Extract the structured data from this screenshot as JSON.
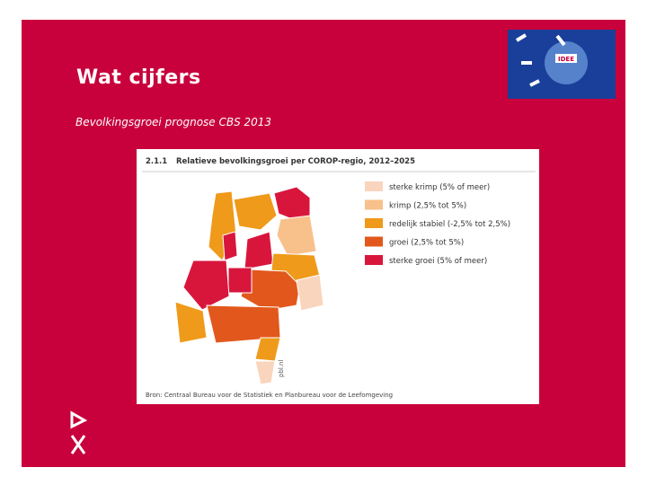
{
  "slide": {
    "title": "Wat cijfers",
    "subtitle": "Bevolkingsgroei prognose CBS 2013"
  },
  "logo": {
    "text": "IDEE"
  },
  "figure": {
    "number": "2.1.1",
    "title": "Relatieve bevolkingsgroei per COROP-regio, 2012–2025",
    "legend": [
      {
        "label": "sterke krimp (5% of meer)",
        "color": "#f9d5bd"
      },
      {
        "label": "krimp (2,5% tot 5%)",
        "color": "#f8c08a"
      },
      {
        "label": "redelijk stabiel (-2,5% tot 2,5%)",
        "color": "#ef9a1a"
      },
      {
        "label": "groei (2,5% tot 5%)",
        "color": "#e2581c"
      },
      {
        "label": "sterke groei (5% of meer)",
        "color": "#d8163c"
      }
    ],
    "source": "Bron: Centraal Bureau voor de Statistiek en Planbureau voor de Leefomgeving",
    "credit": "pbl.nl"
  }
}
